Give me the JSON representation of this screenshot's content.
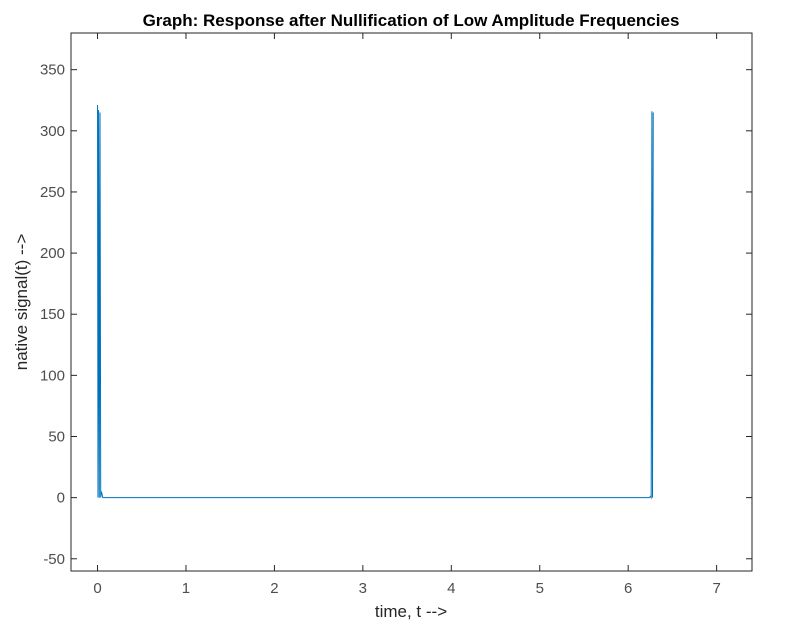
{
  "chart_data": {
    "type": "line",
    "title": "Graph: Response after Nullification of Low Amplitude Frequencies",
    "xlabel": "time, t -->",
    "ylabel": "native signal(t) -->",
    "xlim": [
      -0.3,
      7.4
    ],
    "ylim": [
      -60,
      380
    ],
    "xticks": [
      0,
      1,
      2,
      3,
      4,
      5,
      6,
      7
    ],
    "yticks": [
      -50,
      0,
      50,
      100,
      150,
      200,
      250,
      300,
      350
    ],
    "grid": false,
    "series": [
      {
        "color": "#0072bd",
        "x": [
          0,
          0.005,
          0.012,
          0.02,
          0.028,
          0.036,
          0.044,
          0.06,
          1.0,
          2.0,
          3.0,
          4.0,
          5.0,
          6.0,
          6.2,
          6.24,
          6.252,
          6.26,
          6.268,
          6.275,
          6.2832
        ],
        "y": [
          321,
          0,
          317,
          0,
          315,
          0,
          5,
          0,
          0,
          0,
          0,
          0,
          0,
          0,
          0,
          0,
          1,
          0,
          316,
          0,
          315
        ]
      }
    ]
  }
}
